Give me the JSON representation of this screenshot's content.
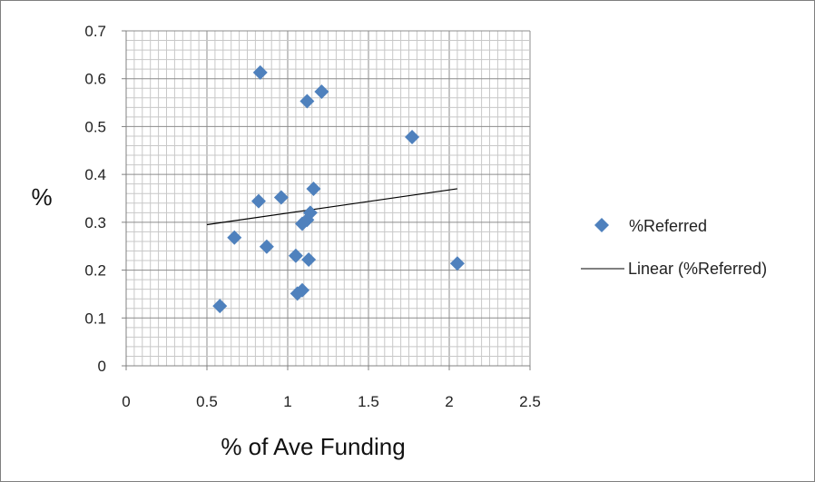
{
  "chart_data": {
    "type": "scatter",
    "title": "",
    "xlabel": "% of Ave Funding",
    "ylabel": "%",
    "xlim": [
      0,
      2.5
    ],
    "ylim": [
      0,
      0.7
    ],
    "x_major_ticks": [
      "0",
      "0.5",
      "1",
      "1.5",
      "2",
      "2.5"
    ],
    "y_major_ticks": [
      "0",
      "0.1",
      "0.2",
      "0.3",
      "0.4",
      "0.5",
      "0.6",
      "0.7"
    ],
    "grid": "major and minor gridlines on both axes",
    "legend_position": "right",
    "series": [
      {
        "name": "%Referred",
        "marker": "diamond",
        "color": "#4F81BD",
        "points": [
          [
            0.83,
            0.613
          ],
          [
            1.21,
            0.573
          ],
          [
            1.12,
            0.553
          ],
          [
            1.77,
            0.478
          ],
          [
            1.16,
            0.37
          ],
          [
            0.96,
            0.352
          ],
          [
            0.82,
            0.344
          ],
          [
            1.14,
            0.32
          ],
          [
            1.12,
            0.305
          ],
          [
            1.09,
            0.297
          ],
          [
            0.67,
            0.268
          ],
          [
            0.87,
            0.249
          ],
          [
            1.05,
            0.23
          ],
          [
            1.13,
            0.222
          ],
          [
            2.05,
            0.214
          ],
          [
            1.09,
            0.158
          ],
          [
            1.06,
            0.151
          ],
          [
            0.58,
            0.125
          ]
        ]
      }
    ],
    "trendline": {
      "name": "Linear (%Referred)",
      "type": "linear",
      "color": "#000000",
      "x_range": [
        0.5,
        2.05
      ],
      "y_at_ends": [
        0.295,
        0.37
      ]
    }
  }
}
